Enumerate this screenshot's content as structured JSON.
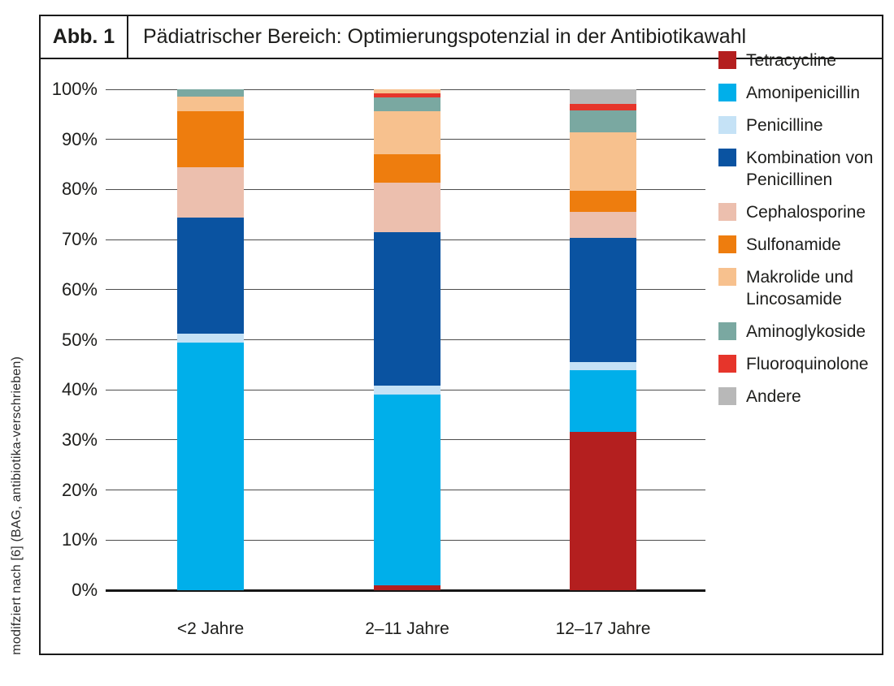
{
  "figure": {
    "label": "Abb. 1",
    "title": "Pädiatrischer Bereich: Optimierungspotenzial in der Antibiotikawahl",
    "source_note": "modifziert nach [6] (BAG, antibiotika-verschrieben)"
  },
  "colors": {
    "grid": "#4d4d4d",
    "axis": "#161616",
    "border": "#1a1a1a"
  },
  "chart_data": {
    "type": "bar",
    "stacked": true,
    "title": "",
    "xlabel": "",
    "ylabel": "",
    "ylim": [
      0,
      100
    ],
    "grid": true,
    "legend_position": "right",
    "yticks": [
      "0%",
      "10%",
      "20%",
      "30%",
      "40%",
      "50%",
      "60%",
      "70%",
      "80%",
      "90%",
      "100%"
    ],
    "categories": [
      "<2 Jahre",
      "2–11 Jahre",
      "12–17 Jahre"
    ],
    "legend": [
      {
        "label": "Tetracycline",
        "color": "#b41f1f"
      },
      {
        "label": "Amonipenicillin",
        "color": "#00afea"
      },
      {
        "label": "Penicilline",
        "color": "#c5e2f6"
      },
      {
        "label": "Kombination von Penicillinen",
        "color": "#0a53a1"
      },
      {
        "label": "Cephalosporine",
        "color": "#ecbfae"
      },
      {
        "label": "Sulfonamide",
        "color": "#ee7d0e"
      },
      {
        "label": "Makrolide und Lincosamide",
        "color": "#f7c18e"
      },
      {
        "label": "Aminoglykoside",
        "color": "#7aa8a1"
      },
      {
        "label": "Fluoroquinolone",
        "color": "#e6352b"
      },
      {
        "label": "Andere",
        "color": "#b8b8b8"
      }
    ],
    "series": [
      {
        "name": "Tetracycline",
        "color": "#b41f1f",
        "values": [
          0,
          1.0,
          31.6
        ]
      },
      {
        "name": "Amonipenicillin",
        "color": "#00afea",
        "values": [
          49.4,
          38.1,
          12.3
        ]
      },
      {
        "name": "Penicilline",
        "color": "#c5e2f6",
        "values": [
          1.8,
          1.8,
          1.6
        ]
      },
      {
        "name": "Kombination von Penicillinen",
        "color": "#0a53a1",
        "values": [
          23.2,
          30.6,
          24.9
        ]
      },
      {
        "name": "Cephalosporine",
        "color": "#ecbfae",
        "values": [
          10.0,
          9.9,
          5.1
        ]
      },
      {
        "name": "Sulfonamide",
        "color": "#ee7d0e",
        "values": [
          11.3,
          5.7,
          4.2
        ]
      },
      {
        "name": "Makrolide und Lincosamide",
        "color": "#f7c18e",
        "values": [
          2.8,
          8.6,
          11.7
        ]
      },
      {
        "name": "Aminoglykoside",
        "color": "#7aa8a1",
        "values": [
          1.5,
          2.6,
          4.4
        ]
      },
      {
        "name": "Fluoroquinolone",
        "color": "#e6352b",
        "values": [
          0,
          0.9,
          1.3
        ]
      },
      {
        "name": "Andere",
        "color": "#b8b8b8",
        "values": [
          0,
          0,
          2.9
        ]
      },
      {
        "name": "Makrolide und Lincosamide",
        "color": "#f7c18e",
        "values": [
          0,
          0.8,
          0
        ]
      }
    ]
  }
}
